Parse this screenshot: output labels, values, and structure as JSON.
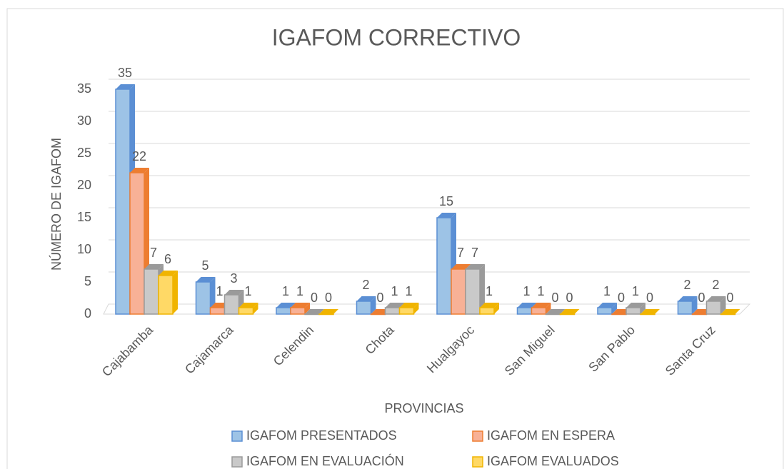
{
  "chart_data": {
    "type": "bar3d",
    "title": "IGAFOM CORRECTIVO",
    "x_label": "PROVINCIAS",
    "y_label": "NÚMERO DE IGAFOM",
    "categories": [
      "Cajabamba",
      "Cajamarca",
      "Celendin",
      "Chota",
      "Hualgayoc",
      "San Miguel",
      "San Pablo",
      "Santa Cruz"
    ],
    "series": [
      {
        "name": "IGAFOM PRESENTADOS",
        "color": "#9dc3e6",
        "edge": "#5b8fd4",
        "values": [
          35,
          5,
          1,
          2,
          15,
          1,
          1,
          2
        ]
      },
      {
        "name": "IGAFOM EN ESPERA",
        "color": "#f8b196",
        "edge": "#ed7d31",
        "values": [
          22,
          1,
          1,
          0,
          7,
          1,
          0,
          0
        ]
      },
      {
        "name": "IGAFOM EN EVALUACIÓN",
        "color": "#c9c9c9",
        "edge": "#9a9a9a",
        "values": [
          7,
          3,
          0,
          1,
          7,
          0,
          1,
          2
        ]
      },
      {
        "name": "IGAFOM EVALUADOS",
        "color": "#ffd966",
        "edge": "#f0b400",
        "values": [
          6,
          1,
          0,
          1,
          1,
          0,
          0,
          0
        ]
      }
    ],
    "ylim": [
      0,
      35
    ],
    "yticks": [
      0,
      5,
      10,
      15,
      20,
      25,
      30,
      35
    ],
    "grid": true
  }
}
